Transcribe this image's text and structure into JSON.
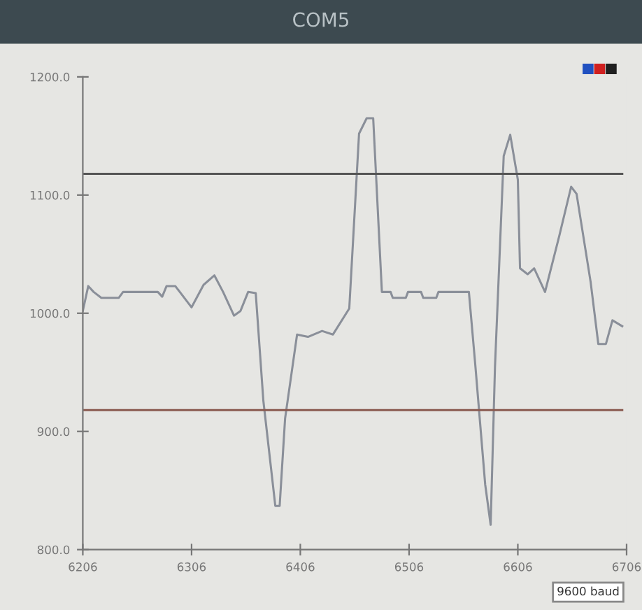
{
  "chart_data": {
    "type": "line",
    "title": "COM5",
    "x": [
      6206,
      6211,
      6216,
      6223,
      6239,
      6243,
      6275,
      6279,
      6283,
      6291,
      6306,
      6317,
      6327,
      6335,
      6345,
      6351,
      6358,
      6365,
      6372,
      6383,
      6387,
      6392,
      6403,
      6413,
      6426,
      6436,
      6451,
      6460,
      6467,
      6473,
      6481,
      6489,
      6491,
      6503,
      6505,
      6517,
      6519,
      6531,
      6533,
      6561,
      6567,
      6576,
      6581,
      6585,
      6593,
      6599,
      6606,
      6608,
      6615,
      6621,
      6625,
      6631,
      6644,
      6655,
      6660,
      6673,
      6680,
      6687,
      6693,
      6702
    ],
    "series": [
      {
        "color": "#8a8f99",
        "values": [
          1002,
          1023,
          1018,
          1013,
          1013,
          1018,
          1018,
          1014,
          1023,
          1023,
          1005,
          1024,
          1032,
          1018,
          998,
          1002,
          1018,
          1017,
          926,
          837,
          837,
          911,
          982,
          980,
          985,
          982,
          1004,
          1152,
          1165,
          1165,
          1018,
          1018,
          1013,
          1013,
          1018,
          1018,
          1013,
          1013,
          1018,
          1018,
          955,
          855,
          821,
          955,
          1133,
          1151,
          1113,
          1038,
          1033,
          1038,
          1030,
          1018,
          1065,
          1107,
          1101,
          1026,
          974,
          974,
          994,
          989
        ]
      },
      {
        "color": "#8a5a50",
        "values": [
          918,
          918,
          918,
          918,
          918,
          918,
          918,
          918,
          918,
          918,
          918,
          918,
          918,
          918,
          918,
          918,
          918,
          918,
          918,
          918,
          918,
          918,
          918,
          918,
          918,
          918,
          918,
          918,
          918,
          918,
          918,
          918,
          918,
          918,
          918,
          918,
          918,
          918,
          918,
          918,
          918,
          918,
          918,
          918,
          918,
          918,
          918,
          918,
          918,
          918,
          918,
          918,
          918,
          918,
          918,
          918,
          918,
          918,
          918,
          918
        ]
      },
      {
        "color": "#555555",
        "values": [
          1118,
          1118,
          1118,
          1118,
          1118,
          1118,
          1118,
          1118,
          1118,
          1118,
          1118,
          1118,
          1118,
          1118,
          1118,
          1118,
          1118,
          1118,
          1118,
          1118,
          1118,
          1118,
          1118,
          1118,
          1118,
          1118,
          1118,
          1118,
          1118,
          1118,
          1118,
          1118,
          1118,
          1118,
          1118,
          1118,
          1118,
          1118,
          1118,
          1118,
          1118,
          1118,
          1118,
          1118,
          1118,
          1118,
          1118,
          1118,
          1118,
          1118,
          1118,
          1118,
          1118,
          1118,
          1118,
          1118,
          1118,
          1118,
          1118,
          1118
        ]
      }
    ],
    "xlim": [
      6206,
      6706
    ],
    "xticks": [
      6206,
      6306,
      6406,
      6506,
      6606,
      6706
    ],
    "ylim": [
      800,
      1200
    ],
    "yticks": [
      {
        "value": 800,
        "label": "800.0"
      },
      {
        "value": 900,
        "label": "900.0"
      },
      {
        "value": 1000,
        "label": "1000.0"
      },
      {
        "value": 1100,
        "label": "1100.0"
      },
      {
        "value": 1200,
        "label": "1200.0"
      }
    ],
    "grid": false,
    "annotations": [
      "9600 baud"
    ]
  }
}
